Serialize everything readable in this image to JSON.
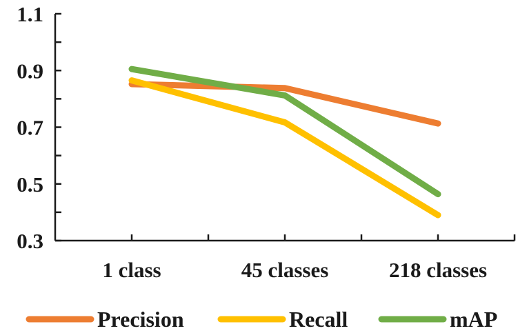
{
  "chart_data": {
    "type": "line",
    "title": "",
    "xlabel": "",
    "ylabel": "",
    "categories": [
      "1 class",
      "45 classes",
      "218 classes"
    ],
    "ylim": [
      0.3,
      1.1
    ],
    "yticks": [
      "0.3",
      "0.5",
      "0.7",
      "0.9",
      "1.1"
    ],
    "yticks_values": [
      0.3,
      0.5,
      0.7,
      0.9,
      1.1
    ],
    "grid": false,
    "legend_position": "bottom",
    "series": [
      {
        "name": "Precision",
        "color": "#ED7D31",
        "values": [
          0.852,
          0.838,
          0.713
        ]
      },
      {
        "name": "Recall",
        "color": "#FFC000",
        "values": [
          0.865,
          0.717,
          0.39
        ]
      },
      {
        "name": "mAP",
        "color": "#70AD47",
        "values": [
          0.905,
          0.812,
          0.464
        ]
      }
    ]
  }
}
